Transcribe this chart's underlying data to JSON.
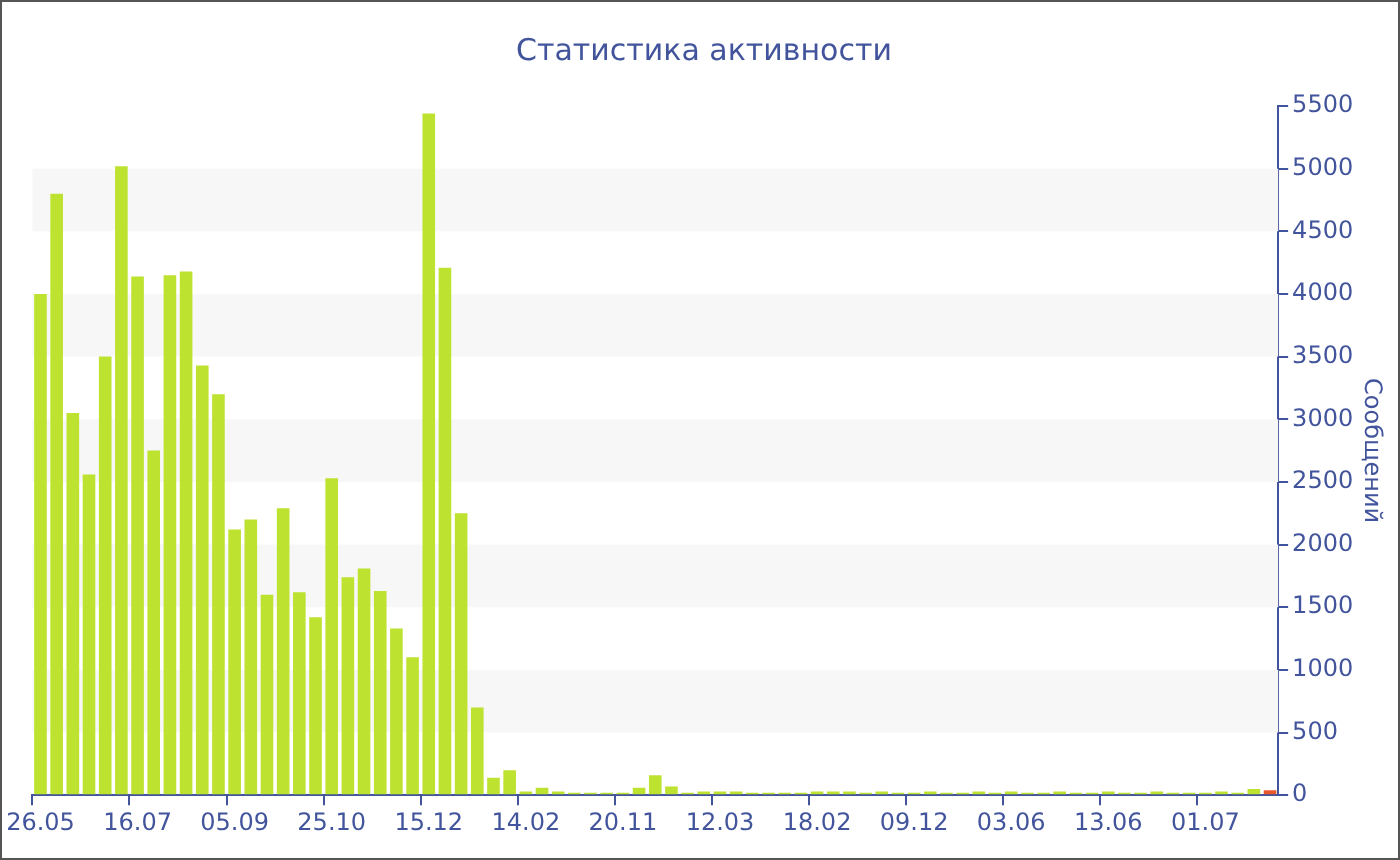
{
  "chart_data": {
    "type": "bar",
    "title": "Статистика активности",
    "ylabel": "Сообщений",
    "categories": [
      "26.05",
      null,
      null,
      null,
      null,
      null,
      "16.07",
      null,
      null,
      null,
      null,
      null,
      "05.09",
      null,
      null,
      null,
      null,
      null,
      "25.10",
      null,
      null,
      null,
      null,
      null,
      "15.12",
      null,
      null,
      null,
      null,
      null,
      "14.02",
      null,
      null,
      null,
      null,
      null,
      "20.11",
      null,
      null,
      null,
      null,
      null,
      "12.03",
      null,
      null,
      null,
      null,
      null,
      "18.02",
      null,
      null,
      null,
      null,
      null,
      "09.12",
      null,
      null,
      null,
      null,
      null,
      "03.06",
      null,
      null,
      null,
      null,
      null,
      "13.06",
      null,
      null,
      null,
      null,
      null,
      "01.07",
      null,
      null,
      null,
      null
    ],
    "values": [
      4000,
      4800,
      3050,
      2560,
      3500,
      5020,
      4140,
      2750,
      4150,
      4180,
      3430,
      3200,
      2120,
      2200,
      1600,
      2290,
      1620,
      1420,
      2530,
      1740,
      1810,
      1630,
      1330,
      1100,
      5440,
      4210,
      2250,
      700,
      140,
      200,
      30,
      60,
      30,
      20,
      20,
      20,
      20,
      60,
      160,
      70,
      20,
      30,
      30,
      30,
      20,
      20,
      20,
      20,
      30,
      30,
      30,
      20,
      30,
      20,
      20,
      30,
      20,
      20,
      30,
      20,
      30,
      20,
      20,
      30,
      20,
      20,
      30,
      20,
      20,
      30,
      20,
      20,
      20,
      30,
      20,
      50,
      40
    ],
    "colors": [
      "#bde22f",
      "#bde22f",
      "#bde22f",
      "#bde22f",
      "#bde22f",
      "#bde22f",
      "#bde22f",
      "#bde22f",
      "#bde22f",
      "#bde22f",
      "#bde22f",
      "#bde22f",
      "#bde22f",
      "#bde22f",
      "#bde22f",
      "#bde22f",
      "#bde22f",
      "#bde22f",
      "#bde22f",
      "#bde22f",
      "#bde22f",
      "#bde22f",
      "#bde22f",
      "#bde22f",
      "#bde22f",
      "#bde22f",
      "#bde22f",
      "#bde22f",
      "#bde22f",
      "#bde22f",
      "#bde22f",
      "#bde22f",
      "#bde22f",
      "#bde22f",
      "#bde22f",
      "#bde22f",
      "#bde22f",
      "#bde22f",
      "#bde22f",
      "#bde22f",
      "#bde22f",
      "#bde22f",
      "#bde22f",
      "#bde22f",
      "#bde22f",
      "#bde22f",
      "#bde22f",
      "#bde22f",
      "#bde22f",
      "#bde22f",
      "#bde22f",
      "#bde22f",
      "#bde22f",
      "#bde22f",
      "#bde22f",
      "#bde22f",
      "#bde22f",
      "#bde22f",
      "#bde22f",
      "#bde22f",
      "#bde22f",
      "#bde22f",
      "#bde22f",
      "#bde22f",
      "#bde22f",
      "#bde22f",
      "#bde22f",
      "#bde22f",
      "#bde22f",
      "#bde22f",
      "#bde22f",
      "#bde22f",
      "#bde22f",
      "#bde22f",
      "#bde22f",
      "#bde22f",
      "#e8572b"
    ],
    "ylim": [
      0,
      5500
    ],
    "yticks": [
      0,
      500,
      1000,
      1500,
      2000,
      2500,
      3000,
      3500,
      4000,
      4500,
      5000,
      5500
    ],
    "legend": false
  }
}
